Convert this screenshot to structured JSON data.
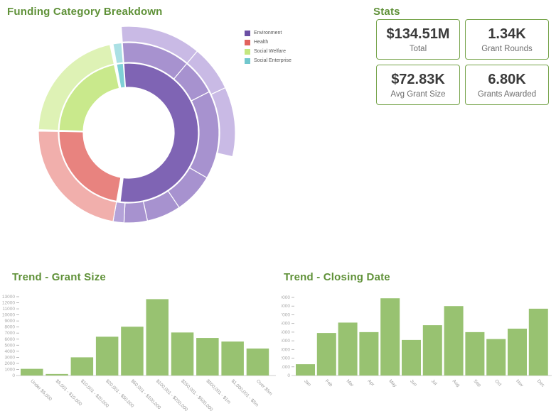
{
  "stats": {
    "title": "Stats",
    "cards": [
      {
        "value": "$134.51M",
        "label": "Total"
      },
      {
        "value": "1.34K",
        "label": "Grant Rounds"
      },
      {
        "value": "$72.83K",
        "label": "Avg Grant Size"
      },
      {
        "value": "6.80K",
        "label": "Grants Awarded"
      }
    ],
    "card_border_color": "#76a44a"
  },
  "theme": {
    "heading_color": "#5f9138",
    "bar_color": "#98c271",
    "axis_color": "#cccccc",
    "tick_text_color": "#a9a9a9"
  },
  "chart_data": [
    {
      "type": "sunburst",
      "title": "Funding Category Breakdown",
      "legend": [
        {
          "label": "Environment",
          "color": "#6b4fa4"
        },
        {
          "label": "Health",
          "color": "#e2625d"
        },
        {
          "label": "Social Welfare",
          "color": "#c4e77f"
        },
        {
          "label": "Social Enterprise",
          "color": "#71c7cd"
        }
      ],
      "rings": [
        {
          "name": "category",
          "r0": 64,
          "r1": 98,
          "segments": [
            {
              "label": "Environment",
              "start": -4,
              "end": 187,
              "color": "#7f64b4"
            },
            {
              "label": "Health",
              "start": 190,
              "end": 271,
              "color": "#e8837f"
            },
            {
              "label": "Social Welfare",
              "start": 272,
              "end": 348,
              "color": "#c9e98c"
            },
            {
              "label": "Social Enterprise",
              "start": 350,
              "end": 355.5,
              "color": "#7fd0d6"
            }
          ]
        },
        {
          "name": "subcategory",
          "r0": 99,
          "r1": 127,
          "segments": [
            {
              "label": "Environment",
              "start": -4,
              "end": 40,
              "color": "#a792cf"
            },
            {
              "label": "Environment",
              "start": 40,
              "end": 63,
              "color": "#a792cf"
            },
            {
              "label": "Environment",
              "start": 63,
              "end": 120,
              "color": "#a792cf"
            },
            {
              "label": "Environment",
              "start": 120,
              "end": 146,
              "color": "#a792cf"
            },
            {
              "label": "Environment",
              "start": 146,
              "end": 168,
              "color": "#a792cf"
            },
            {
              "label": "Environment",
              "start": 168,
              "end": 183,
              "color": "#a792cf"
            },
            {
              "label": "Environment",
              "start": 183,
              "end": 190,
              "color": "#b4a2d8"
            },
            {
              "label": "Health",
              "start": 190,
              "end": 271,
              "color": "#f1afac"
            },
            {
              "label": "Social Welfare",
              "start": 272,
              "end": 348,
              "color": "#def2b5"
            },
            {
              "label": "Social Enterprise",
              "start": 350,
              "end": 355.5,
              "color": "#abe0e4"
            }
          ]
        },
        {
          "name": "detail",
          "r0": 128,
          "r1": 150,
          "segments": [
            {
              "label": "Environment",
              "start": -4,
              "end": 40,
              "color": "#c9bae5"
            },
            {
              "label": "Environment",
              "start": 40,
              "end": 65,
              "color": "#c9bae5"
            },
            {
              "label": "Environment",
              "start": 65,
              "end": 103,
              "color": "#c9bae5"
            }
          ]
        }
      ]
    },
    {
      "type": "bar",
      "title": "Trend - Grant Size",
      "categories": [
        "Under $5,000",
        "$5,001 - $10,000",
        "$10,001 - $20,000",
        "$20,001 - $50,000",
        "$50,001 - $100,000",
        "$100,001 - $250,000",
        "$250,001 - $500,000",
        "$500,001 - $1m",
        "$1,000,001 - $5m",
        "Over $5m"
      ],
      "values": [
        1100,
        250,
        3000,
        6400,
        8050,
        12600,
        7100,
        6200,
        5600,
        4450
      ],
      "xlabel": "",
      "ylabel": "",
      "ylim": [
        0,
        13000
      ],
      "ytick_step": 1000,
      "grid": false,
      "legend_position": "none"
    },
    {
      "type": "bar",
      "title": "Trend - Closing Date",
      "categories": [
        "Jan",
        "Feb",
        "Mar",
        "Apr",
        "May",
        "Jun",
        "Jul",
        "Aug",
        "Sep",
        "Oct",
        "Nov",
        "Dec"
      ],
      "values": [
        1300,
        4900,
        6100,
        5000,
        8900,
        4100,
        5800,
        8000,
        5000,
        4200,
        5400,
        7700
      ],
      "xlabel": "",
      "ylabel": "",
      "ylim": [
        0,
        9000
      ],
      "ytick_step": 1000,
      "grid": false,
      "legend_position": "none"
    }
  ]
}
